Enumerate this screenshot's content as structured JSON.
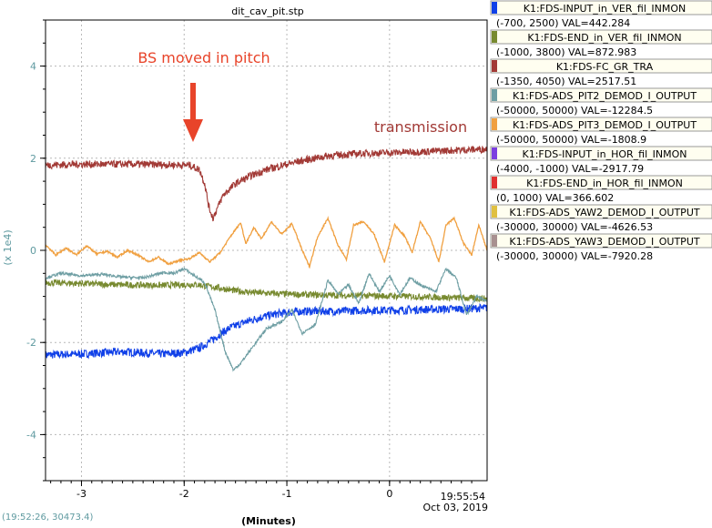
{
  "chart_data": {
    "type": "line",
    "title": "dit_cav_pit.stp",
    "xlabel": "(Minutes)",
    "ylabel": "(x 1e4)",
    "xlim": [
      -3.35,
      0.95
    ],
    "ylim": [
      -5.0,
      5.0
    ],
    "x_ticks": [
      -3,
      -2,
      -1,
      0
    ],
    "y_ticks": [
      -4,
      -2,
      0,
      2,
      4
    ],
    "grid": true,
    "time_label": "19:55:54",
    "date_label": "Oct 03, 2019",
    "cursor_readout": "(19:52:26, 30473.4)",
    "annotations": [
      {
        "text": "BS moved in pitch",
        "color": "#e8442a"
      },
      {
        "text": "transmission",
        "color": "#a23a36"
      }
    ],
    "series": [
      {
        "name": "K1:FDS-INPUT_in_VER_fil_INMON",
        "range": "(-700, 2500) VAL=442.284",
        "color": "#1040e8",
        "points": [
          [
            -3.35,
            -2.27
          ],
          [
            -3.0,
            -2.25
          ],
          [
            -2.6,
            -2.2
          ],
          [
            -2.2,
            -2.25
          ],
          [
            -2.0,
            -2.22
          ],
          [
            -1.85,
            -2.12
          ],
          [
            -1.75,
            -1.98
          ],
          [
            -1.65,
            -1.82
          ],
          [
            -1.55,
            -1.68
          ],
          [
            -1.4,
            -1.55
          ],
          [
            -1.25,
            -1.45
          ],
          [
            -1.1,
            -1.38
          ],
          [
            -0.9,
            -1.33
          ],
          [
            -0.7,
            -1.32
          ],
          [
            -0.5,
            -1.32
          ],
          [
            -0.2,
            -1.3
          ],
          [
            0.1,
            -1.3
          ],
          [
            0.4,
            -1.28
          ],
          [
            0.7,
            -1.27
          ],
          [
            0.95,
            -1.25
          ]
        ]
      },
      {
        "name": "K1:FDS-END_in_VER_fil_INMON",
        "range": "(-1000, 3800) VAL=872.983",
        "color": "#788a30",
        "points": [
          [
            -3.35,
            -0.7
          ],
          [
            -3.0,
            -0.72
          ],
          [
            -2.6,
            -0.75
          ],
          [
            -2.2,
            -0.76
          ],
          [
            -1.9,
            -0.74
          ],
          [
            -1.7,
            -0.8
          ],
          [
            -1.5,
            -0.88
          ],
          [
            -1.3,
            -0.92
          ],
          [
            -1.0,
            -0.95
          ],
          [
            -0.7,
            -0.97
          ],
          [
            -0.4,
            -0.98
          ],
          [
            -0.1,
            -0.99
          ],
          [
            0.2,
            -1.0
          ],
          [
            0.5,
            -1.02
          ],
          [
            0.8,
            -1.04
          ],
          [
            0.95,
            -1.05
          ]
        ]
      },
      {
        "name": "K1:FDS-FC_GR_TRA",
        "range": "(-1350, 4050) VAL=2517.51",
        "color": "#a23a36",
        "points": [
          [
            -3.35,
            1.85
          ],
          [
            -3.0,
            1.87
          ],
          [
            -2.6,
            1.87
          ],
          [
            -2.2,
            1.86
          ],
          [
            -1.95,
            1.85
          ],
          [
            -1.85,
            1.75
          ],
          [
            -1.8,
            1.45
          ],
          [
            -1.76,
            0.95
          ],
          [
            -1.72,
            0.7
          ],
          [
            -1.68,
            0.9
          ],
          [
            -1.62,
            1.2
          ],
          [
            -1.5,
            1.45
          ],
          [
            -1.35,
            1.62
          ],
          [
            -1.2,
            1.75
          ],
          [
            -1.0,
            1.87
          ],
          [
            -0.8,
            1.97
          ],
          [
            -0.6,
            2.05
          ],
          [
            -0.3,
            2.1
          ],
          [
            0.0,
            2.12
          ],
          [
            0.3,
            2.14
          ],
          [
            0.6,
            2.17
          ],
          [
            0.95,
            2.2
          ]
        ]
      },
      {
        "name": "K1:FDS-ADS_PIT2_DEMOD_I_OUTPUT",
        "range": "(-50000, 50000) VAL=-12284.5",
        "color": "#6e9ea3",
        "points": [
          [
            -3.35,
            -0.6
          ],
          [
            -3.2,
            -0.5
          ],
          [
            -3.0,
            -0.55
          ],
          [
            -2.8,
            -0.52
          ],
          [
            -2.6,
            -0.58
          ],
          [
            -2.4,
            -0.6
          ],
          [
            -2.2,
            -0.48
          ],
          [
            -2.1,
            -0.5
          ],
          [
            -2.0,
            -0.4
          ],
          [
            -1.9,
            -0.55
          ],
          [
            -1.8,
            -0.7
          ],
          [
            -1.7,
            -1.3
          ],
          [
            -1.6,
            -2.2
          ],
          [
            -1.52,
            -2.6
          ],
          [
            -1.45,
            -2.45
          ],
          [
            -1.35,
            -2.15
          ],
          [
            -1.2,
            -1.7
          ],
          [
            -1.05,
            -1.55
          ],
          [
            -0.95,
            -1.3
          ],
          [
            -0.85,
            -1.8
          ],
          [
            -0.72,
            -1.6
          ],
          [
            -0.6,
            -0.65
          ],
          [
            -0.5,
            -0.95
          ],
          [
            -0.4,
            -0.75
          ],
          [
            -0.3,
            -1.15
          ],
          [
            -0.2,
            -0.5
          ],
          [
            -0.1,
            -0.9
          ],
          [
            0.0,
            -0.55
          ],
          [
            0.1,
            -0.95
          ],
          [
            0.2,
            -0.6
          ],
          [
            0.3,
            -0.75
          ],
          [
            0.45,
            -0.9
          ],
          [
            0.55,
            -0.4
          ],
          [
            0.65,
            -0.6
          ],
          [
            0.75,
            -1.4
          ],
          [
            0.85,
            -1.0
          ],
          [
            0.95,
            -1.1
          ]
        ]
      },
      {
        "name": "K1:FDS-ADS_PIT3_DEMOD_I_OUTPUT",
        "range": "(-50000, 50000) VAL=-1808.9",
        "color": "#f0a040",
        "points": [
          [
            -3.35,
            0.12
          ],
          [
            -3.25,
            -0.1
          ],
          [
            -3.15,
            0.05
          ],
          [
            -3.05,
            -0.1
          ],
          [
            -2.95,
            0.1
          ],
          [
            -2.85,
            -0.08
          ],
          [
            -2.75,
            -0.02
          ],
          [
            -2.65,
            -0.15
          ],
          [
            -2.55,
            0.0
          ],
          [
            -2.45,
            -0.1
          ],
          [
            -2.35,
            -0.25
          ],
          [
            -2.25,
            -0.15
          ],
          [
            -2.15,
            -0.3
          ],
          [
            -2.05,
            -0.22
          ],
          [
            -1.95,
            -0.18
          ],
          [
            -1.85,
            -0.05
          ],
          [
            -1.75,
            -0.25
          ],
          [
            -1.65,
            -0.05
          ],
          [
            -1.55,
            0.3
          ],
          [
            -1.45,
            0.6
          ],
          [
            -1.4,
            0.15
          ],
          [
            -1.32,
            0.5
          ],
          [
            -1.25,
            0.25
          ],
          [
            -1.15,
            0.62
          ],
          [
            -1.05,
            0.35
          ],
          [
            -0.95,
            0.58
          ],
          [
            -0.85,
            0.0
          ],
          [
            -0.78,
            -0.35
          ],
          [
            -0.7,
            0.3
          ],
          [
            -0.6,
            0.7
          ],
          [
            -0.5,
            0.1
          ],
          [
            -0.42,
            -0.2
          ],
          [
            -0.35,
            0.55
          ],
          [
            -0.25,
            0.62
          ],
          [
            -0.15,
            0.35
          ],
          [
            -0.05,
            -0.25
          ],
          [
            0.05,
            0.55
          ],
          [
            0.15,
            0.3
          ],
          [
            0.22,
            -0.05
          ],
          [
            0.3,
            0.62
          ],
          [
            0.4,
            0.25
          ],
          [
            0.48,
            -0.25
          ],
          [
            0.55,
            0.55
          ],
          [
            0.63,
            0.7
          ],
          [
            0.72,
            0.15
          ],
          [
            0.8,
            -0.1
          ],
          [
            0.87,
            0.55
          ],
          [
            0.95,
            0.0
          ]
        ]
      }
    ],
    "legend_only": [
      {
        "name": "K1:FDS-INPUT_in_HOR_fil_INMON",
        "range": "(-4000, -1000) VAL=-2917.79",
        "color": "#7b3ee0"
      },
      {
        "name": "K1:FDS-END_in_HOR_fil_INMON",
        "range": "(0, 1000) VAL=366.602",
        "color": "#e03030"
      },
      {
        "name": "K1:FDS-ADS_YAW2_DEMOD_I_OUTPUT",
        "range": "(-30000, 30000) VAL=-4626.53",
        "color": "#e0c040"
      },
      {
        "name": "K1:FDS-ADS_YAW3_DEMOD_I_OUTPUT",
        "range": "(-30000, 30000) VAL=-7920.28",
        "color": "#a89090"
      }
    ]
  }
}
